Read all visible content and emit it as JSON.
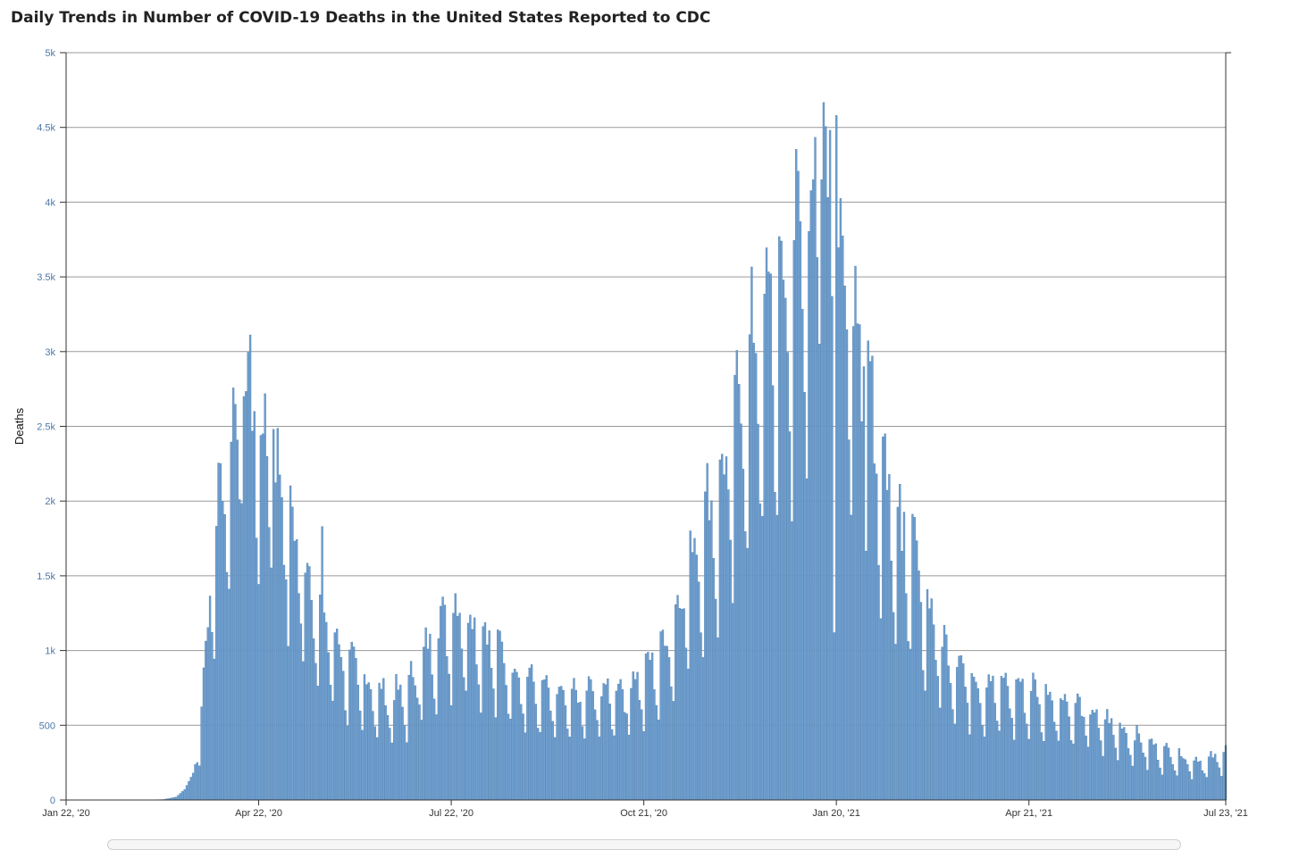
{
  "page": {
    "title": "Daily Trends in Number of COVID-19 Deaths in the United States Reported to CDC"
  },
  "colors": {
    "bar": "#6f9fcf",
    "bar_stroke": "#4f81b3",
    "grid": "#999999",
    "axis": "#333333"
  },
  "chart_data": {
    "type": "bar",
    "title": "Daily Trends in Number of COVID-19 Deaths in the United States Reported to CDC",
    "xlabel": "",
    "ylabel": "Deaths",
    "ylim": [
      0,
      5000
    ],
    "x_start": "Jan 22, '20",
    "x_end": "Jul 23, '21",
    "yticks": [
      {
        "value": 0,
        "label": "0"
      },
      {
        "value": 500,
        "label": "500"
      },
      {
        "value": 1000,
        "label": "1k"
      },
      {
        "value": 1500,
        "label": "1.5k"
      },
      {
        "value": 2000,
        "label": "2k"
      },
      {
        "value": 2500,
        "label": "2.5k"
      },
      {
        "value": 3000,
        "label": "3k"
      },
      {
        "value": 3500,
        "label": "3.5k"
      },
      {
        "value": 4000,
        "label": "4k"
      },
      {
        "value": 4500,
        "label": "4.5k"
      },
      {
        "value": 5000,
        "label": "5k"
      }
    ],
    "xticks": [
      {
        "day": 0,
        "label": "Jan 22, '20"
      },
      {
        "day": 91,
        "label": "Apr 22, '20"
      },
      {
        "day": 182,
        "label": "Jul 22, '20"
      },
      {
        "day": 273,
        "label": "Oct 21, '20"
      },
      {
        "day": 364,
        "label": "Jan 20, '21"
      },
      {
        "day": 455,
        "label": "Apr 21, '21"
      },
      {
        "day": 548,
        "label": "Jul 23, '21"
      }
    ],
    "grid": true,
    "legend": "none",
    "anchors": [
      [
        0,
        0
      ],
      [
        38,
        0
      ],
      [
        46,
        3
      ],
      [
        52,
        20
      ],
      [
        56,
        70
      ],
      [
        60,
        180
      ],
      [
        63,
        400
      ],
      [
        66,
        900
      ],
      [
        68,
        1350
      ],
      [
        71,
        1650
      ],
      [
        74,
        1950
      ],
      [
        77,
        2200
      ],
      [
        80,
        2250
      ],
      [
        83,
        2400
      ],
      [
        85,
        2550
      ],
      [
        88,
        2350
      ],
      [
        91,
        2250
      ],
      [
        94,
        2100
      ],
      [
        98,
        2000
      ],
      [
        101,
        1900
      ],
      [
        105,
        1750
      ],
      [
        108,
        1550
      ],
      [
        112,
        1450
      ],
      [
        116,
        1300
      ],
      [
        120,
        1150
      ],
      [
        124,
        1050
      ],
      [
        128,
        950
      ],
      [
        132,
        850
      ],
      [
        137,
        780
      ],
      [
        142,
        700
      ],
      [
        147,
        650
      ],
      [
        152,
        620
      ],
      [
        157,
        630
      ],
      [
        162,
        680
      ],
      [
        166,
        780
      ],
      [
        170,
        880
      ],
      [
        174,
        980
      ],
      [
        178,
        1080
      ],
      [
        182,
        1120
      ],
      [
        186,
        1150
      ],
      [
        190,
        1100
      ],
      [
        194,
        1050
      ],
      [
        198,
        990
      ],
      [
        203,
        920
      ],
      [
        208,
        840
      ],
      [
        214,
        760
      ],
      [
        220,
        710
      ],
      [
        226,
        660
      ],
      [
        232,
        620
      ],
      [
        238,
        620
      ],
      [
        244,
        640
      ],
      [
        250,
        650
      ],
      [
        256,
        660
      ],
      [
        262,
        680
      ],
      [
        266,
        700
      ],
      [
        270,
        740
      ],
      [
        274,
        780
      ],
      [
        278,
        840
      ],
      [
        282,
        920
      ],
      [
        286,
        1050
      ],
      [
        290,
        1200
      ],
      [
        294,
        1400
      ],
      [
        298,
        1550
      ],
      [
        302,
        1700
      ],
      [
        306,
        1800
      ],
      [
        310,
        1900
      ],
      [
        314,
        2100
      ],
      [
        318,
        2400
      ],
      [
        322,
        2600
      ],
      [
        326,
        2750
      ],
      [
        330,
        2850
      ],
      [
        334,
        2900
      ],
      [
        338,
        3000
      ],
      [
        342,
        3200
      ],
      [
        346,
        3400
      ],
      [
        350,
        3550
      ],
      [
        354,
        3650
      ],
      [
        358,
        3750
      ],
      [
        362,
        3700
      ],
      [
        365,
        3500
      ],
      [
        368,
        3200
      ],
      [
        372,
        3000
      ],
      [
        376,
        2800
      ],
      [
        380,
        2550
      ],
      [
        384,
        2250
      ],
      [
        388,
        1950
      ],
      [
        392,
        1750
      ],
      [
        396,
        1600
      ],
      [
        400,
        1500
      ],
      [
        404,
        1300
      ],
      [
        408,
        1150
      ],
      [
        412,
        1000
      ],
      [
        416,
        900
      ],
      [
        420,
        850
      ],
      [
        425,
        800
      ],
      [
        430,
        720
      ],
      [
        436,
        700
      ],
      [
        442,
        690
      ],
      [
        448,
        680
      ],
      [
        454,
        670
      ],
      [
        460,
        650
      ],
      [
        466,
        620
      ],
      [
        472,
        600
      ],
      [
        478,
        560
      ],
      [
        484,
        520
      ],
      [
        490,
        480
      ],
      [
        496,
        450
      ],
      [
        502,
        400
      ],
      [
        508,
        360
      ],
      [
        514,
        320
      ],
      [
        520,
        290
      ],
      [
        526,
        270
      ],
      [
        532,
        240
      ],
      [
        538,
        230
      ],
      [
        544,
        260
      ],
      [
        548,
        310
      ]
    ],
    "peaks": [
      [
        84,
        2700
      ],
      [
        89,
        2600
      ],
      [
        98,
        2480
      ],
      [
        121,
        1830
      ],
      [
        333,
        3520
      ],
      [
        353,
        4150
      ],
      [
        357,
        4150
      ],
      [
        364,
        4580
      ],
      [
        368,
        3440
      ],
      [
        377,
        2900
      ],
      [
        382,
        2250
      ],
      [
        395,
        1665
      ]
    ],
    "dips": [
      [
        363,
        1120
      ]
    ]
  }
}
